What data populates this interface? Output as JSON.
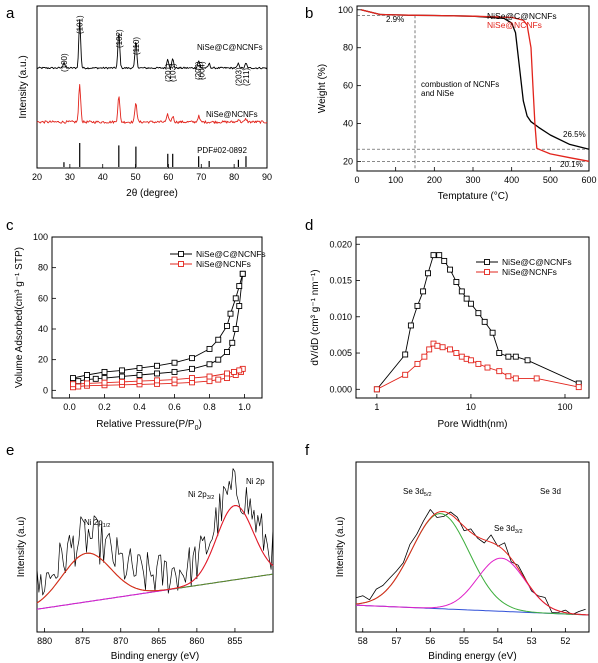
{
  "chart_data": [
    {
      "panel": "a",
      "type": "line",
      "xlabel": "2θ (degree)",
      "ylabel": "Intensity (a.u.)",
      "xlim": [
        20,
        90
      ],
      "xticks": [
        20,
        30,
        40,
        50,
        60,
        70,
        80,
        90
      ],
      "series": [
        {
          "name": "NiSe@C@NCNFs",
          "color": "#000000",
          "peaks": [
            [
              28.2,
              2
            ],
            [
              33.0,
              16
            ],
            [
              44.9,
              12
            ],
            [
              50.1,
              9
            ],
            [
              59.8,
              3
            ],
            [
              61.3,
              3
            ],
            [
              69.2,
              2.5
            ],
            [
              72.4,
              1.5
            ],
            [
              81.3,
              1.5
            ],
            [
              83.6,
              1.5
            ]
          ]
        },
        {
          "name": "NiSe@NCNFs",
          "color": "#e2241c",
          "peaks": [
            [
              33.0,
              13
            ],
            [
              44.9,
              9
            ],
            [
              50.1,
              7
            ],
            [
              59.8,
              2.5
            ],
            [
              61.3,
              2
            ],
            [
              69.2,
              2
            ],
            [
              81.3,
              1
            ],
            [
              83.6,
              1
            ]
          ]
        }
      ],
      "reference": {
        "name": "PDF#02-0892",
        "lines": [
          [
            28.2,
            0.2
          ],
          [
            33.0,
            1.0
          ],
          [
            44.9,
            0.9
          ],
          [
            50.1,
            0.85
          ],
          [
            59.8,
            0.55
          ],
          [
            61.3,
            0.55
          ],
          [
            69.2,
            0.45
          ],
          [
            72.4,
            0.25
          ],
          [
            81.3,
            0.3
          ],
          [
            83.6,
            0.45
          ]
        ]
      },
      "peak_labels": [
        {
          "x": 28.2,
          "label": "(100)"
        },
        {
          "x": 33.0,
          "label": "(101)"
        },
        {
          "x": 44.9,
          "label": "(102)"
        },
        {
          "x": 50.1,
          "label": "(110)"
        },
        {
          "x": 59.8,
          "label": "(201)"
        },
        {
          "x": 61.3,
          "label": "(103)"
        },
        {
          "x": 69.0,
          "label": "(202)"
        },
        {
          "x": 70.0,
          "label": "(004)"
        },
        {
          "x": 81.3,
          "label": "(203)"
        },
        {
          "x": 83.6,
          "label": "(211)"
        }
      ]
    },
    {
      "panel": "b",
      "type": "line",
      "xlabel": "Temptature (°C)",
      "ylabel": "Weight (%)",
      "xlim": [
        0,
        600
      ],
      "ylim": [
        15,
        102
      ],
      "xticks": [
        0,
        100,
        200,
        300,
        400,
        500,
        600
      ],
      "yticks": [
        20,
        40,
        60,
        80,
        100
      ],
      "series": [
        {
          "name": "NiSe@C@NCNFs",
          "color": "#000000",
          "x": [
            10,
            60,
            100,
            150,
            200,
            300,
            380,
            400,
            410,
            420,
            430,
            440,
            450,
            470,
            500,
            550,
            600
          ],
          "y": [
            100,
            97.5,
            97.3,
            97.1,
            97.0,
            96.6,
            95.5,
            93,
            88,
            70,
            52,
            44,
            41,
            38,
            34,
            29,
            26.5
          ]
        },
        {
          "name": "NiSe@NCNFs",
          "color": "#e2241c",
          "x": [
            10,
            60,
            100,
            150,
            200,
            300,
            400,
            430,
            440,
            450,
            455,
            460,
            465,
            470,
            500,
            550,
            600
          ],
          "y": [
            100,
            97.5,
            97.3,
            97.1,
            97.0,
            96.6,
            96,
            94.5,
            92,
            80,
            60,
            40,
            27,
            26.5,
            24,
            22,
            20.1
          ]
        }
      ],
      "annotations": [
        "2.9%",
        "combustion of NCNFs",
        "and NiSe",
        "26.5%",
        "20.1%"
      ]
    },
    {
      "panel": "c",
      "type": "line",
      "xlabel": "Relative Pressure(P/P",
      "xlabel_sub": "0",
      "xlabel_tail": ")",
      "ylabel": "Volume Adsorbed(cm³ g⁻¹ STP)",
      "xlim": [
        -0.1,
        1.1
      ],
      "ylim": [
        -5,
        100
      ],
      "xticks": [
        0.0,
        0.2,
        0.4,
        0.6,
        0.8,
        1.0
      ],
      "yticks": [
        0,
        20,
        40,
        60,
        80,
        100
      ],
      "series": [
        {
          "name": "NiSe@C@NCNFs",
          "color": "#000000",
          "x": [
            0.02,
            0.05,
            0.1,
            0.15,
            0.2,
            0.3,
            0.4,
            0.5,
            0.6,
            0.7,
            0.8,
            0.85,
            0.9,
            0.93,
            0.95,
            0.97,
            0.99,
            0.99,
            0.97,
            0.95,
            0.92,
            0.9,
            0.85,
            0.8,
            0.7,
            0.6,
            0.5,
            0.4,
            0.3,
            0.2,
            0.1,
            0.02
          ],
          "y": [
            5,
            6,
            7,
            7.5,
            8,
            9,
            10,
            11,
            12,
            14,
            17,
            20,
            25,
            31,
            40,
            55,
            76,
            76,
            68,
            60,
            50,
            42,
            33,
            27,
            21,
            18,
            16,
            14.5,
            13,
            12,
            10,
            8
          ]
        },
        {
          "name": "NiSe@NCNFs",
          "color": "#e2241c",
          "x": [
            0.02,
            0.05,
            0.1,
            0.2,
            0.3,
            0.4,
            0.5,
            0.6,
            0.7,
            0.8,
            0.85,
            0.9,
            0.95,
            0.98,
            0.99,
            0.97,
            0.94,
            0.9,
            0.8,
            0.7,
            0.6,
            0.5,
            0.4,
            0.3,
            0.2,
            0.1,
            0.02
          ],
          "y": [
            2,
            2.5,
            3,
            3.3,
            3.6,
            3.9,
            4.2,
            4.6,
            5.2,
            6,
            7,
            8,
            10,
            12,
            14,
            13,
            12,
            11,
            9,
            8,
            7,
            6.5,
            6,
            5.5,
            5,
            4.5,
            4
          ]
        }
      ]
    },
    {
      "panel": "d",
      "type": "line",
      "xlabel": "Pore Width(nm)",
      "ylabel": "dV/dD (cm³ g⁻¹ nm⁻¹)",
      "xscale": "log",
      "xlim": [
        0.6,
        180
      ],
      "ylim": [
        -0.0012,
        0.021
      ],
      "xticks": [
        1,
        10,
        100
      ],
      "yticks": [
        0.0,
        0.005,
        0.01,
        0.015,
        0.02
      ],
      "series": [
        {
          "name": "NiSe@C@NCNFs",
          "color": "#000000",
          "x": [
            1,
            2,
            2.3,
            2.7,
            3.1,
            3.5,
            4.0,
            4.6,
            5.2,
            6.0,
            7.0,
            8.0,
            9.0,
            10.0,
            12,
            14,
            17,
            20,
            25,
            30,
            40,
            140
          ],
          "y": [
            0,
            0.0048,
            0.0088,
            0.0115,
            0.0135,
            0.016,
            0.0185,
            0.0185,
            0.0177,
            0.0165,
            0.0148,
            0.0135,
            0.0125,
            0.0118,
            0.0105,
            0.0093,
            0.0078,
            0.005,
            0.0045,
            0.0045,
            0.004,
            0.0008
          ]
        },
        {
          "name": "NiSe@NCNFs",
          "color": "#e2241c",
          "x": [
            1,
            2,
            2.7,
            3.2,
            3.6,
            4.0,
            4.4,
            5.0,
            6.0,
            7.0,
            8.0,
            9.0,
            10,
            12,
            15,
            20,
            25,
            30,
            50,
            140
          ],
          "y": [
            0,
            0.002,
            0.0035,
            0.0045,
            0.0055,
            0.0063,
            0.006,
            0.0058,
            0.0055,
            0.005,
            0.0045,
            0.0042,
            0.004,
            0.0035,
            0.003,
            0.0025,
            0.0018,
            0.0015,
            0.0015,
            0.0003
          ]
        }
      ]
    },
    {
      "panel": "e",
      "type": "line",
      "xlabel": "Binding energy (eV)",
      "ylabel": "Intensity (a.u)",
      "xlim": [
        881,
        850
      ],
      "xticks": [
        880,
        875,
        870,
        865,
        860,
        855
      ],
      "series": [
        {
          "name": "raw",
          "color": "#000000"
        },
        {
          "name": "fit",
          "color": "#e2241c"
        },
        {
          "name": "Ni 2p1/2 component",
          "color": "#5f8a1e"
        },
        {
          "name": "Ni 2p3/2 component",
          "color": "#e020c8"
        },
        {
          "name": "background",
          "color": "#3050d8"
        }
      ],
      "labels": [
        "Ni 2p",
        "1/2",
        "Ni 2p",
        "3/2",
        "Ni 2p"
      ]
    },
    {
      "panel": "f",
      "type": "line",
      "xlabel": "Binding energy (eV)",
      "ylabel": "Intensity (a.u)",
      "xlim": [
        58.2,
        51.3
      ],
      "xticks": [
        58,
        57,
        56,
        55,
        54,
        53,
        52
      ],
      "series": [
        {
          "name": "raw",
          "color": "#000000"
        },
        {
          "name": "fit",
          "color": "#e2241c"
        },
        {
          "name": "Se 3d5/2 component",
          "color": "#3cae3c"
        },
        {
          "name": "Se 3d3/2 component",
          "color": "#e020c8"
        },
        {
          "name": "background",
          "color": "#3050d8"
        }
      ],
      "labels": [
        "Se 3d",
        "5/2",
        "Se 3d",
        "3/2",
        "Se 3d"
      ]
    }
  ],
  "legend_names": {
    "carbon": "NiSe@C@NCNFs",
    "bare": "NiSe@NCNFs"
  },
  "colors": {
    "black": "#000000",
    "red": "#e2241c"
  }
}
